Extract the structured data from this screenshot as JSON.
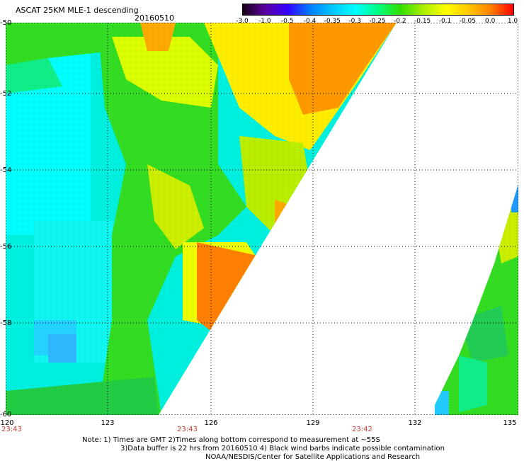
{
  "header": {
    "title": "ASCAT 25KM MLE-1 descending",
    "date": "20160510"
  },
  "colorbar": {
    "labels": [
      "-3.0",
      "-1.0",
      "-0.5",
      "-0.4",
      "-0.35",
      "-0.3",
      "-0.25",
      "-0.2",
      "-0.15",
      "-0.1",
      "-0.05",
      "0.0",
      "1.0"
    ],
    "stops": [
      "#1a0018",
      "#5b00a0",
      "#3300ff",
      "#0080ff",
      "#00c8ff",
      "#00ffff",
      "#00ff80",
      "#33dd00",
      "#aaee00",
      "#ffff00",
      "#ffc800",
      "#ff8000",
      "#ff0000"
    ]
  },
  "axes": {
    "lat_labels": [
      "-50",
      "-52",
      "-54",
      "-56",
      "-58",
      "-60"
    ],
    "lon_labels": [
      "120",
      "123",
      "126",
      "129",
      "132",
      "135"
    ]
  },
  "times": [
    "23:43",
    "23:43",
    "23:42"
  ],
  "notes": {
    "line1": "Note: 1) Times are GMT 2)Times along bottom correspond to measurement at ~55S",
    "line2": "3)Data buffer is 22 hrs from 20160510 4) Black wind barbs indicate possible contamination",
    "line3": "NOAA/NESDIS/Center for Satellite Applications and Research"
  }
}
